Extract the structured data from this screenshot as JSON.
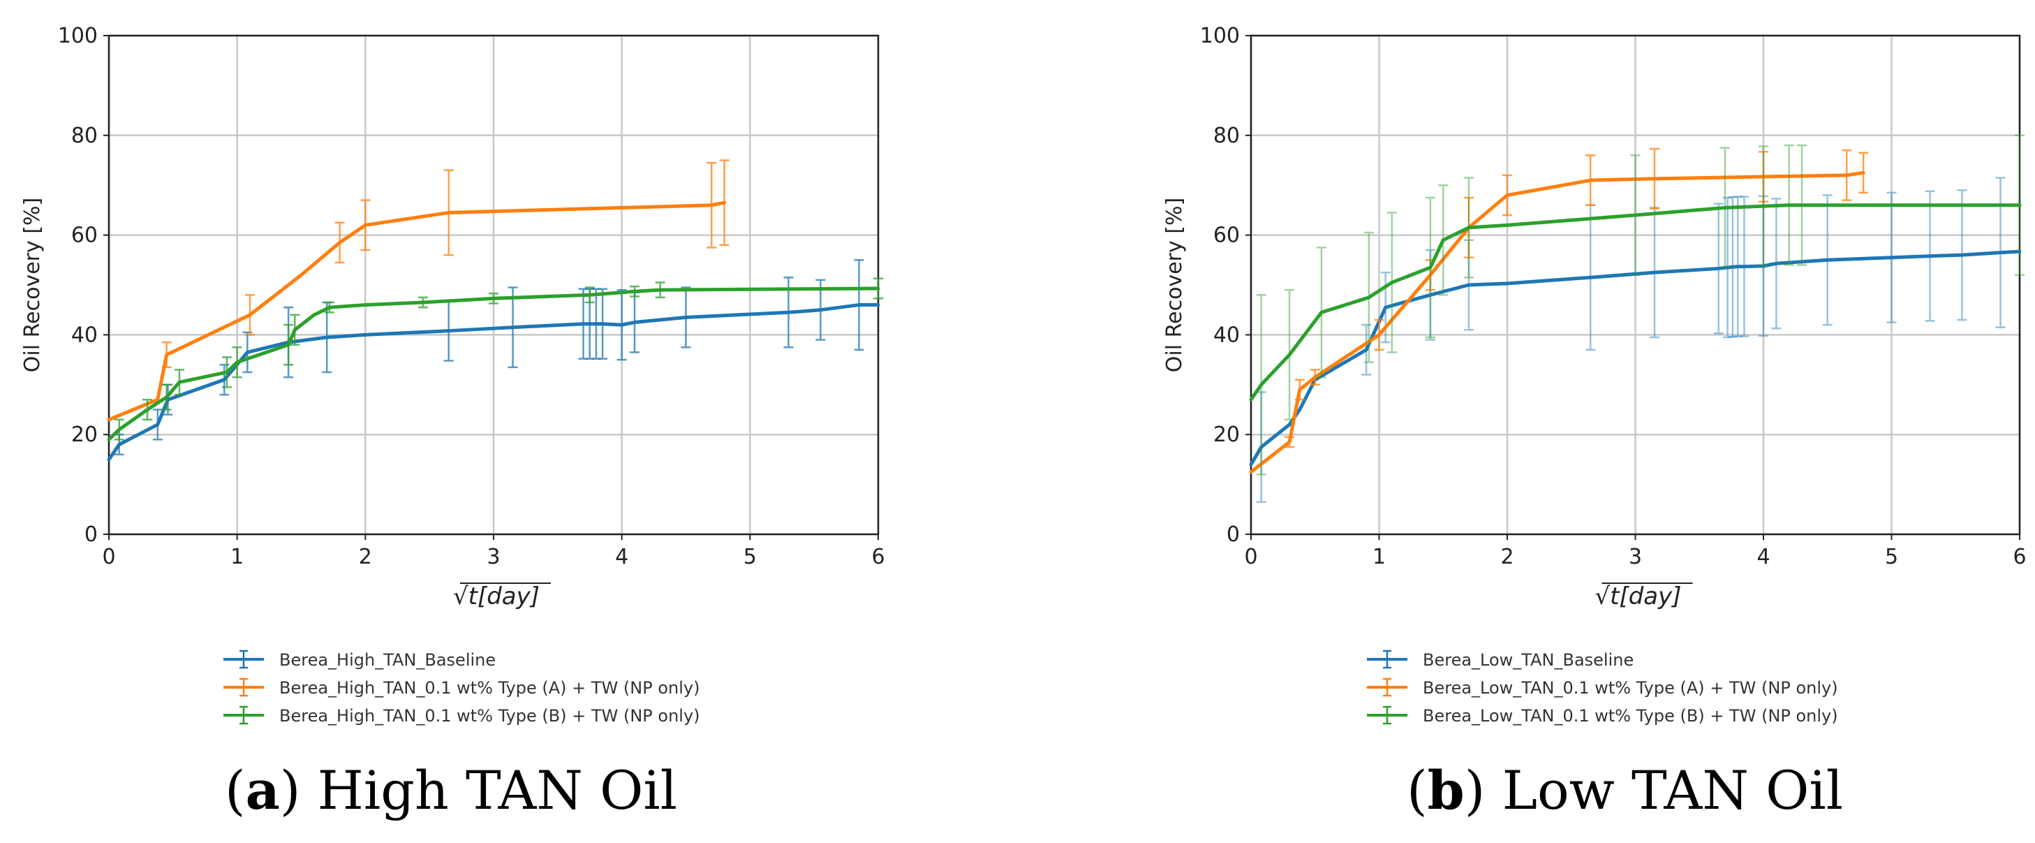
{
  "chart_data": [
    {
      "type": "line",
      "title": "",
      "caption_letter": "a",
      "caption_text": "High TAN Oil",
      "xlabel": "√t[day]",
      "ylabel": "Oil Recovery [%]",
      "xlim": [
        0,
        6
      ],
      "ylim": [
        0,
        100
      ],
      "xticks": [
        "0",
        "1",
        "2",
        "3",
        "4",
        "5",
        "6"
      ],
      "yticks": [
        "0",
        "20",
        "40",
        "60",
        "80",
        "100"
      ],
      "grid": true,
      "legend_position": "below",
      "series": [
        {
          "name": "Berea_High_TAN_Baseline",
          "color": "#1f77b4",
          "x": [
            0,
            0.08,
            0.38,
            0.46,
            0.9,
            1.08,
            1.4,
            1.7,
            2.0,
            2.65,
            3.15,
            3.7,
            3.75,
            3.8,
            3.85,
            4.0,
            4.1,
            4.5,
            5.3,
            5.55,
            5.85,
            6.0
          ],
          "y": [
            15,
            18,
            22,
            27,
            31,
            36.5,
            38.5,
            39.5,
            40,
            40.8,
            41.5,
            42.2,
            42.2,
            42.2,
            42.2,
            42.0,
            42.5,
            43.5,
            44.5,
            45,
            46,
            46
          ],
          "err": [
            0,
            2,
            3,
            3,
            3,
            4,
            7,
            7,
            0,
            6,
            8,
            7,
            7,
            7,
            7,
            7,
            6,
            6,
            7,
            6,
            9,
            0
          ]
        },
        {
          "name": "Berea_High_TAN_0.1 wt% Type (A) + TW (NP only)",
          "color": "#ff7f0e",
          "x": [
            0,
            0.38,
            0.45,
            1.1,
            1.5,
            1.8,
            2.0,
            2.65,
            4.7,
            4.8
          ],
          "y": [
            23,
            27,
            36,
            44,
            52,
            58.5,
            62,
            64.5,
            66,
            66.5
          ],
          "err": [
            0,
            0,
            2.5,
            4,
            0,
            4,
            5,
            8.5,
            8.5,
            8.5
          ]
        },
        {
          "name": "Berea_High_TAN_0.1 wt% Type (B) + TW (NP only)",
          "color": "#2ca02c",
          "x": [
            0,
            0.08,
            0.3,
            0.45,
            0.55,
            0.92,
            1.0,
            1.4,
            1.45,
            1.6,
            1.72,
            2.0,
            2.45,
            3.0,
            3.75,
            4.1,
            4.3,
            6.0
          ],
          "y": [
            19,
            21,
            25,
            27.5,
            30.5,
            32.5,
            34.5,
            38,
            41,
            44,
            45.5,
            46,
            46.5,
            47.3,
            48,
            48.7,
            49,
            49.3
          ],
          "err": [
            0,
            2,
            2,
            2.5,
            2.5,
            3,
            3,
            4,
            3,
            0,
            1,
            0,
            1,
            1,
            1.5,
            1,
            1.5,
            2
          ]
        }
      ]
    },
    {
      "type": "line",
      "title": "",
      "caption_letter": "b",
      "caption_text": "Low TAN Oil",
      "xlabel": "√t[day]",
      "ylabel": "Oil Recovery [%]",
      "xlim": [
        0,
        6
      ],
      "ylim": [
        0,
        100
      ],
      "xticks": [
        "0",
        "1",
        "2",
        "3",
        "4",
        "5",
        "6"
      ],
      "yticks": [
        "0",
        "20",
        "40",
        "60",
        "80",
        "100"
      ],
      "grid": true,
      "legend_position": "below",
      "series": [
        {
          "name": "Berea_Low_TAN_Baseline",
          "color": "#1f77b4",
          "x": [
            0,
            0.08,
            0.3,
            0.38,
            0.5,
            0.9,
            1.05,
            1.4,
            1.7,
            2.0,
            2.65,
            3.15,
            3.65,
            3.72,
            3.76,
            3.8,
            3.85,
            4.0,
            4.1,
            4.5,
            5.0,
            5.3,
            5.55,
            5.85,
            6.0
          ],
          "y": [
            14,
            17.5,
            22,
            25,
            31,
            37,
            45.5,
            48,
            50,
            50.3,
            51.5,
            52.5,
            53.3,
            53.5,
            53.6,
            53.7,
            53.7,
            53.8,
            54.3,
            55,
            55.5,
            55.8,
            56,
            56.5,
            56.7
          ],
          "err": [
            0,
            11,
            0,
            0,
            0,
            5,
            7,
            9,
            9,
            0,
            14.5,
            13,
            13,
            14,
            14,
            14,
            14,
            14,
            13,
            13,
            13,
            13,
            13,
            15,
            0
          ]
        },
        {
          "name": "Berea_Low_TAN_0.1 wt% Type (A) + TW (NP only)",
          "color": "#ff7f0e",
          "x": [
            0,
            0.3,
            0.38,
            0.5,
            1.0,
            1.4,
            1.7,
            2.0,
            2.65,
            3.15,
            4.0,
            4.65,
            4.78
          ],
          "y": [
            12.5,
            18.5,
            29,
            31.5,
            40,
            52,
            61.5,
            68,
            71,
            71.3,
            71.7,
            72,
            72.5
          ],
          "err": [
            0,
            1,
            2,
            1.5,
            3,
            3,
            6,
            4,
            5,
            6,
            5,
            5,
            4
          ]
        },
        {
          "name": "Berea_Low_TAN_0.1 wt% Type (B) + TW (NP only)",
          "color": "#2ca02c",
          "x": [
            0,
            0.08,
            0.3,
            0.55,
            0.92,
            1.1,
            1.4,
            1.5,
            1.7,
            2.0,
            3.0,
            3.7,
            4.0,
            4.2,
            4.3,
            6.0
          ],
          "y": [
            27,
            30,
            36,
            44.5,
            47.5,
            50.5,
            53.5,
            59,
            61.5,
            62,
            64,
            65.5,
            65.8,
            66,
            66,
            66
          ],
          "err": [
            0,
            18,
            13,
            13,
            13,
            14,
            14,
            11,
            10,
            0,
            12,
            12,
            12,
            12,
            12,
            14
          ]
        }
      ]
    }
  ]
}
